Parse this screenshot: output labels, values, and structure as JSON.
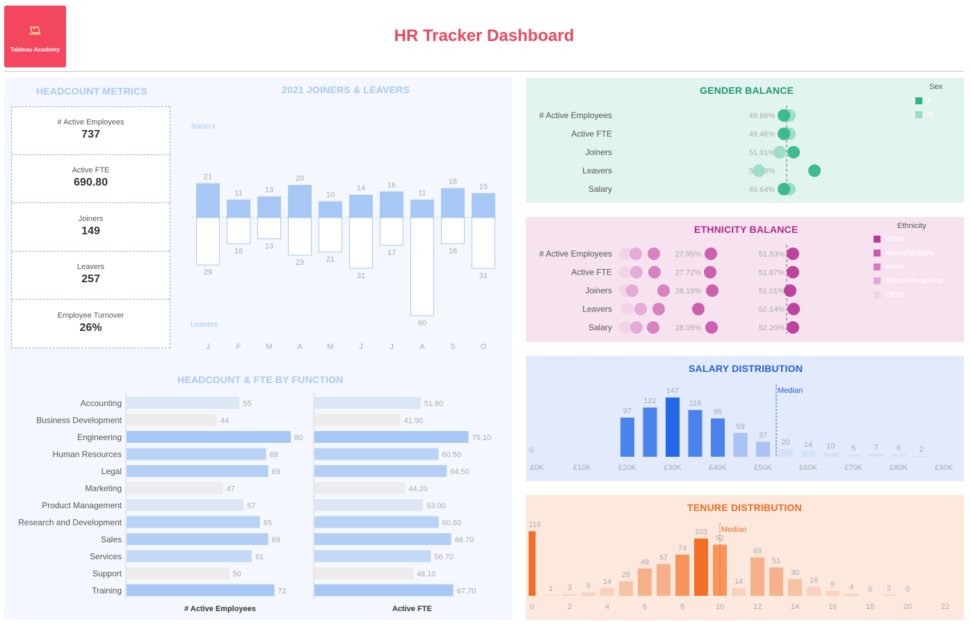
{
  "header": {
    "logo_text": "Tableau Academy",
    "title": "HR Tracker Dashboard"
  },
  "headcount_metrics": {
    "title": "HEADCOUNT METRICS",
    "kpis": [
      {
        "label": "# Active Employees",
        "value": "737"
      },
      {
        "label": "Active FTE",
        "value": "690.80"
      },
      {
        "label": "Joiners",
        "value": "149"
      },
      {
        "label": "Leavers",
        "value": "257"
      },
      {
        "label": "Employee Turnover",
        "value": "26%"
      }
    ]
  },
  "joiners_leavers": {
    "title": "2021 JOINERS & LEAVERS",
    "joiners_label": "Joiners",
    "leavers_label": "Leavers",
    "months": [
      "J",
      "F",
      "M",
      "A",
      "M",
      "J",
      "J",
      "A",
      "S",
      "O"
    ],
    "joiners": [
      21,
      11,
      13,
      20,
      10,
      14,
      16,
      11,
      18,
      15
    ],
    "leavers": [
      29,
      16,
      13,
      23,
      21,
      31,
      17,
      60,
      16,
      31
    ],
    "colors": {
      "joiners": "#a7c8f4",
      "leavers_border": "#a7c8f4"
    }
  },
  "function_chart": {
    "title": "HEADCOUNT & FTE BY FUNCTION",
    "axis_label_left": "# Active Employees",
    "axis_label_right": "Active FTE",
    "functions": [
      "Accounting",
      "Business Development",
      "Engineering",
      "Human Resources",
      "Legal",
      "Marketing",
      "Product Management",
      "Research and Development",
      "Sales",
      "Services",
      "Support",
      "Training"
    ],
    "employees": [
      55,
      44,
      80,
      68,
      69,
      47,
      57,
      65,
      69,
      61,
      50,
      72
    ],
    "fte": [
      "51.80",
      "41.90",
      "75.10",
      "60.50",
      "64.50",
      "44.20",
      "53.00",
      "60.60",
      "66.70",
      "56.70",
      "48.10",
      "67.70"
    ],
    "colors": [
      "#dce6f5",
      "#ececec",
      "#a7c8f4",
      "#b9d3f6",
      "#b4cff6",
      "#ececec",
      "#dce6f5",
      "#b9d3f6",
      "#b4cff6",
      "#c3d9f7",
      "#ececec",
      "#a7c8f4"
    ]
  },
  "gender_balance": {
    "title": "GENDER BALANCE",
    "legend_title": "Sex",
    "legend": [
      {
        "label": "F",
        "color": "#2bb688"
      },
      {
        "label": "M",
        "color": "#9adbc4"
      }
    ],
    "rows": [
      {
        "label": "# Active Employees",
        "pct": "49.66%"
      },
      {
        "label": "Active FTE",
        "pct": "49.46%"
      },
      {
        "label": "Joiners",
        "pct": "51.01%"
      },
      {
        "label": "Leavers",
        "pct": "54.09%"
      },
      {
        "label": "Salary",
        "pct": "49.64%"
      }
    ],
    "colors": {
      "F": "#2bb688",
      "M": "#9adbc4"
    }
  },
  "ethnicity_balance": {
    "title": "ETHNICITY BALANCE",
    "legend_title": "Ethnicity",
    "legend": [
      {
        "label": "White",
        "color": "#b93a9a"
      },
      {
        "label": "Mixed/Multiple",
        "color": "#c957aa"
      },
      {
        "label": "Asian",
        "color": "#d67cbd"
      },
      {
        "label": "Black/African/Car..",
        "color": "#e4a7d5"
      },
      {
        "label": "Other",
        "color": "#f1d3e7"
      }
    ],
    "rows": [
      {
        "label": "# Active Employees",
        "pct_mid": "27.95%",
        "pct_white": "51.83%"
      },
      {
        "label": "Active FTE",
        "pct_mid": "27.72%",
        "pct_white": "51.87%"
      },
      {
        "label": "Joiners",
        "pct_mid": "28.19%",
        "pct_white": "51.01%"
      },
      {
        "label": "Leavers",
        "pct_mid": "",
        "pct_white": "52.14%"
      },
      {
        "label": "Salary",
        "pct_mid": "28.05%",
        "pct_white": "52.20%"
      }
    ]
  },
  "salary_distribution": {
    "title": "SALARY DISTRIBUTION",
    "median_label": "Median",
    "values": [
      0,
      0,
      0,
      0,
      97,
      122,
      147,
      116,
      95,
      59,
      37,
      20,
      14,
      10,
      5,
      7,
      6,
      2
    ],
    "value_labels": [
      "0",
      "",
      "",
      "",
      "97",
      "122",
      "147",
      "116",
      "95",
      "59",
      "37",
      "20",
      "14",
      "10",
      "5",
      "7",
      "6",
      "2"
    ],
    "x_ticks": [
      "£0K",
      "£10K",
      "£20K",
      "£30K",
      "£40K",
      "£50K",
      "£60K",
      "£70K",
      "£80K",
      "£90K"
    ],
    "median_value": "£55K",
    "colors": {
      "bar": "#4a82ee",
      "max_bar": "#2369e8",
      "light": "#a9c3f4"
    }
  },
  "tenure_distribution": {
    "title": "TENURE DISTRIBUTION",
    "median_label": "Median",
    "values": [
      116,
      1,
      3,
      6,
      14,
      26,
      49,
      57,
      74,
      103,
      92,
      14,
      69,
      51,
      30,
      16,
      9,
      4,
      0,
      2,
      0
    ],
    "x_ticks": [
      "0",
      "2",
      "4",
      "6",
      "8",
      "10",
      "12",
      "14",
      "16",
      "18",
      "20",
      "22"
    ],
    "median_value": 10,
    "colors": {
      "max": "#f36f28",
      "high": "#f8935a",
      "mid": "#f6b08a",
      "low": "#f9d2bd"
    }
  }
}
